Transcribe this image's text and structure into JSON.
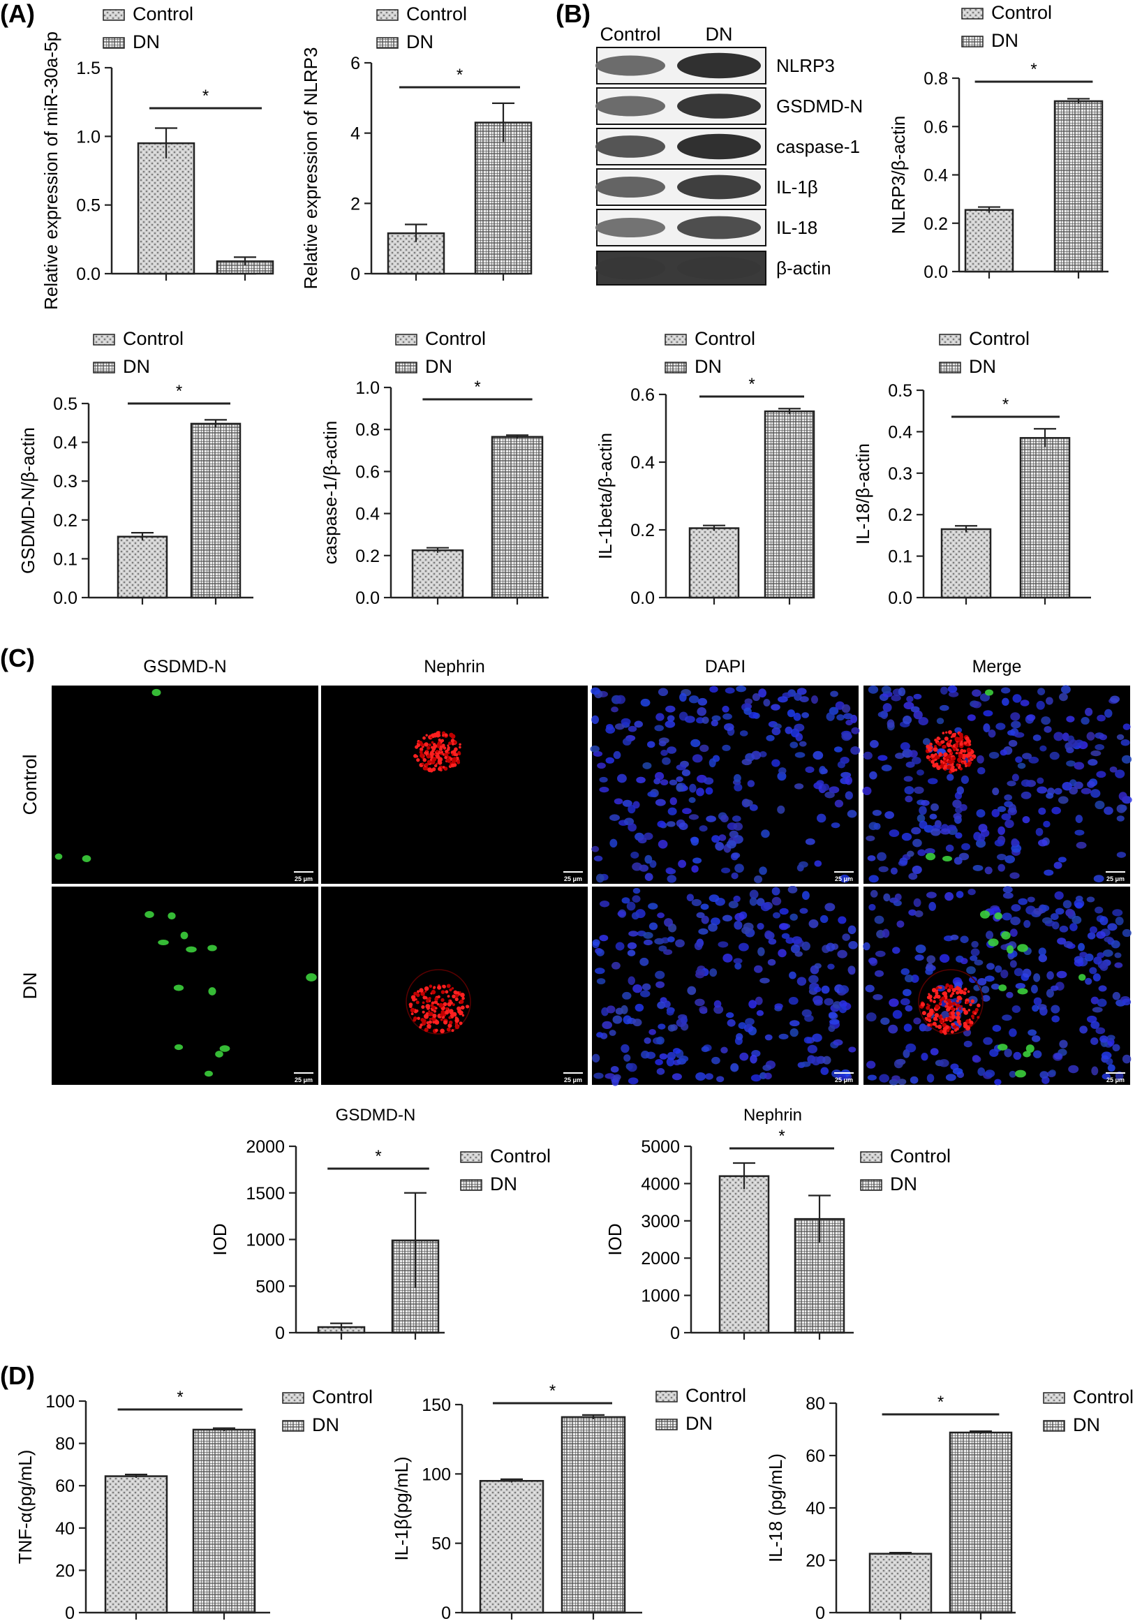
{
  "panels": {
    "a": "(A)",
    "b": "(B)",
    "c": "(C)",
    "d": "(D)"
  },
  "legend": {
    "control": "Control",
    "dn": "DN"
  },
  "patterns": {
    "control_fill": "#cfcfcf",
    "dn_fill": "#9a9a9a",
    "line": "#222222"
  },
  "western_blot": {
    "lanes": [
      "Control",
      "DN"
    ],
    "proteins": [
      "NLRP3",
      "GSDMD-N",
      "caspase-1",
      "IL-1β",
      "IL-18",
      "β-actin"
    ],
    "band_intensity": {
      "control": [
        0.55,
        0.55,
        0.7,
        0.6,
        0.5,
        0.9
      ],
      "dn": [
        0.95,
        0.9,
        0.95,
        0.85,
        0.75,
        0.9
      ]
    }
  },
  "microscopy": {
    "columns": [
      "GSDMD-N",
      "Nephrin",
      "DAPI",
      "Merge"
    ],
    "rows": [
      "Control",
      "DN"
    ],
    "scale_bar": "25 μm"
  },
  "chart_data": [
    {
      "id": "mir30a",
      "type": "bar",
      "categories": [
        "Control",
        "DN"
      ],
      "values": [
        0.95,
        0.09
      ],
      "errors": [
        0.11,
        0.03
      ],
      "ylabel": "Relative expression of miR-30a-5p",
      "ylim": [
        0,
        1.5
      ],
      "yticks": [
        "0.0",
        "0.5",
        "1.0",
        "1.5"
      ],
      "significance": "*",
      "legend": "top"
    },
    {
      "id": "nlrp3_rel",
      "type": "bar",
      "categories": [
        "Control",
        "DN"
      ],
      "values": [
        1.15,
        4.3
      ],
      "errors": [
        0.25,
        0.55
      ],
      "ylabel": "Relative expression of NLRP3",
      "ylim": [
        0,
        6
      ],
      "yticks": [
        "0",
        "2",
        "4",
        "6"
      ],
      "significance": "*",
      "legend": "top"
    },
    {
      "id": "nlrp3_wb",
      "type": "bar",
      "categories": [
        "Control",
        "DN"
      ],
      "values": [
        0.255,
        0.705
      ],
      "errors": [
        0.012,
        0.01
      ],
      "ylabel": "NLRP3/β-actin",
      "ylim": [
        0,
        0.8
      ],
      "yticks": [
        "0.0",
        "0.2",
        "0.4",
        "0.6",
        "0.8"
      ],
      "significance": "*",
      "legend": "top"
    },
    {
      "id": "gsdmd_wb",
      "type": "bar",
      "categories": [
        "Control",
        "DN"
      ],
      "values": [
        0.157,
        0.448
      ],
      "errors": [
        0.01,
        0.01
      ],
      "ylabel": "GSDMD-N/β-actin",
      "ylim": [
        0,
        0.5
      ],
      "yticks": [
        "0.0",
        "0.1",
        "0.2",
        "0.3",
        "0.4",
        "0.5"
      ],
      "significance": "*",
      "legend": "top"
    },
    {
      "id": "casp1_wb",
      "type": "bar",
      "categories": [
        "Control",
        "DN"
      ],
      "values": [
        0.225,
        0.765
      ],
      "errors": [
        0.012,
        0.008
      ],
      "ylabel": "caspase-1/β-actin",
      "ylim": [
        0,
        1.0
      ],
      "yticks": [
        "0.0",
        "0.2",
        "0.4",
        "0.6",
        "0.8",
        "1.0"
      ],
      "significance": "*",
      "legend": "top"
    },
    {
      "id": "il1b_wb",
      "type": "bar",
      "categories": [
        "Control",
        "DN"
      ],
      "values": [
        0.205,
        0.55
      ],
      "errors": [
        0.008,
        0.008
      ],
      "ylabel": "IL-1beta/β-actin",
      "ylim": [
        0,
        0.6
      ],
      "yticks": [
        "0.0",
        "0.2",
        "0.4",
        "0.6"
      ],
      "significance": "*",
      "legend": "top"
    },
    {
      "id": "il18_wb",
      "type": "bar",
      "categories": [
        "Control",
        "DN"
      ],
      "values": [
        0.165,
        0.385
      ],
      "errors": [
        0.008,
        0.022
      ],
      "ylabel": "IL-18/β-actin",
      "ylim": [
        0,
        0.5
      ],
      "yticks": [
        "0.0",
        "0.1",
        "0.2",
        "0.3",
        "0.4",
        "0.5"
      ],
      "significance": "*",
      "legend": "top"
    },
    {
      "id": "iod_gsdmd",
      "type": "bar",
      "title": "GSDMD-N",
      "categories": [
        "Control",
        "DN"
      ],
      "values": [
        60,
        990
      ],
      "errors": [
        40,
        510
      ],
      "ylabel": "IOD",
      "ylim": [
        0,
        2000
      ],
      "yticks": [
        "0",
        "500",
        "1000",
        "1500",
        "2000"
      ],
      "significance": "*",
      "legend": "right"
    },
    {
      "id": "iod_nephrin",
      "type": "bar",
      "title": "Nephrin",
      "categories": [
        "Control",
        "DN"
      ],
      "values": [
        4200,
        3050
      ],
      "errors": [
        350,
        630
      ],
      "ylabel": "IOD",
      "ylim": [
        0,
        5000
      ],
      "yticks": [
        "0",
        "1000",
        "2000",
        "3000",
        "4000",
        "5000"
      ],
      "significance": "*",
      "legend": "right"
    },
    {
      "id": "tnf",
      "type": "bar",
      "categories": [
        "Control",
        "DN"
      ],
      "values": [
        64.5,
        86.5
      ],
      "errors": [
        0.8,
        0.7
      ],
      "ylabel": "TNF-α(pg/mL)",
      "ylim": [
        0,
        100
      ],
      "yticks": [
        "0",
        "20",
        "40",
        "60",
        "80",
        "100"
      ],
      "significance": "*",
      "legend": "right"
    },
    {
      "id": "il1b_elisa",
      "type": "bar",
      "categories": [
        "Control",
        "DN"
      ],
      "values": [
        95,
        141
      ],
      "errors": [
        1.2,
        1.5
      ],
      "ylabel": "IL-1β(pg/mL)",
      "ylim": [
        0,
        150
      ],
      "yticks": [
        "0",
        "50",
        "100",
        "150"
      ],
      "significance": "*",
      "legend": "right"
    },
    {
      "id": "il18_elisa",
      "type": "bar",
      "categories": [
        "Control",
        "DN"
      ],
      "values": [
        22.5,
        68.8
      ],
      "errors": [
        0.4,
        0.5
      ],
      "ylabel": "IL-18 (pg/mL)",
      "ylim": [
        0,
        80
      ],
      "yticks": [
        "0",
        "20",
        "40",
        "60",
        "80"
      ],
      "significance": "*",
      "legend": "right"
    }
  ]
}
